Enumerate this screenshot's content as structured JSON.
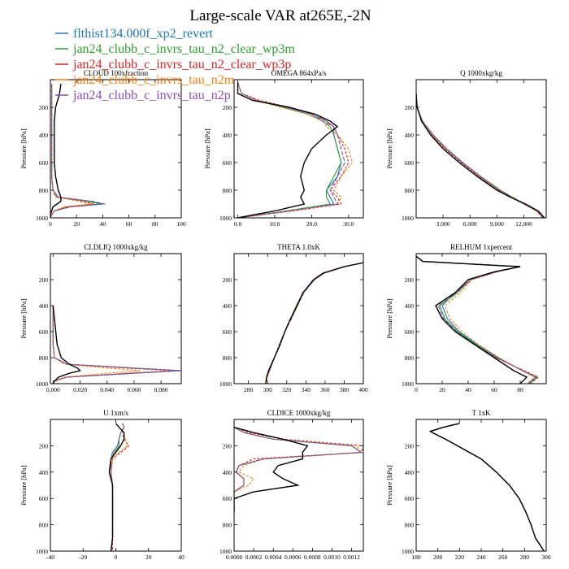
{
  "title": "Large-scale VAR at265E,-2N",
  "legend": [
    {
      "label": "flthist134.000f_xp2_revert",
      "color": "#1f77b4"
    },
    {
      "label": "jan24_clubb_c_invrs_tau_n2_clear_wp3m",
      "color": "#2ca02c"
    },
    {
      "label": "jan24_clubb_c_invrs_tau_n2_clear_wp3p",
      "color": "#d62728"
    },
    {
      "label": "jan24_clubb_c_invrs_tau_n2m",
      "color": "#ff7f0e"
    },
    {
      "label": "jan24_clubb_c_invrs_tau_n2p",
      "color": "#8a4fb5"
    }
  ],
  "obs_color": "#000000",
  "chart_data": [
    {
      "type": "line",
      "title": "CLOUD 100xfraction",
      "ylabel": "Pressure [hPa]",
      "xlim": [
        0,
        100
      ],
      "ylim": [
        1000,
        0
      ],
      "xticks": [
        "0",
        "20",
        "40",
        "60",
        "80",
        "100"
      ],
      "xtick_values": [
        0,
        20,
        40,
        60,
        80,
        100
      ],
      "yticks": [
        "200",
        "400",
        "600",
        "800",
        "1000"
      ],
      "ytick_values": [
        200,
        400,
        600,
        800,
        1000
      ],
      "pressure": [
        30,
        100,
        200,
        300,
        400,
        500,
        600,
        700,
        800,
        850,
        880,
        900,
        920,
        950,
        980,
        1000
      ],
      "obs": [
        8,
        7,
        4,
        3,
        3,
        3,
        3,
        4,
        6,
        8,
        8,
        5,
        2,
        1,
        0,
        0
      ],
      "series": [
        [
          1,
          1,
          1,
          1,
          1,
          1,
          1,
          1,
          2,
          6,
          30,
          40,
          15,
          3,
          1,
          0
        ],
        [
          1,
          1,
          1,
          1,
          1,
          1,
          1,
          1,
          2,
          5,
          28,
          38,
          14,
          3,
          1,
          0
        ],
        [
          1,
          1,
          1,
          1,
          1,
          1,
          1,
          1,
          2,
          4,
          25,
          33,
          12,
          3,
          1,
          0
        ],
        [
          1,
          1,
          1,
          1,
          1,
          1,
          1,
          1,
          2,
          5,
          22,
          31,
          11,
          3,
          1,
          0
        ],
        [
          1,
          1,
          1,
          1,
          1,
          1,
          1,
          1,
          2,
          6,
          32,
          42,
          16,
          3,
          1,
          0
        ]
      ]
    },
    {
      "type": "line",
      "title": "OMEGA 864xPa/s",
      "ylabel": "Pressure [hPa]",
      "xlim": [
        -1,
        34
      ],
      "ylim": [
        1000,
        0
      ],
      "xticks": [
        "0.0",
        "10.0",
        "20.0",
        "30.0"
      ],
      "xtick_values": [
        0,
        10,
        20,
        30
      ],
      "yticks": [
        "200",
        "400",
        "600",
        "800",
        "1000"
      ],
      "ytick_values": [
        200,
        400,
        600,
        800,
        1000
      ],
      "pressure": [
        20,
        100,
        150,
        200,
        250,
        300,
        340,
        400,
        500,
        600,
        700,
        800,
        850,
        900,
        950,
        1000
      ],
      "obs": [
        0,
        0,
        4,
        14,
        21,
        25,
        27,
        24,
        20,
        18,
        17,
        18,
        17,
        18,
        10,
        0
      ],
      "series": [
        [
          0,
          1,
          5,
          13,
          20,
          24,
          26,
          26,
          27,
          28,
          27,
          24,
          25,
          26,
          14,
          0
        ],
        [
          0,
          1,
          5,
          12,
          19,
          23,
          25,
          26,
          27,
          28,
          26,
          24,
          24,
          25,
          13,
          0
        ],
        [
          0,
          1,
          6,
          14,
          21,
          24,
          26,
          27,
          29,
          30,
          28,
          25,
          27,
          28,
          15,
          0
        ],
        [
          0,
          1,
          5,
          12,
          19,
          23,
          24,
          27,
          30,
          31,
          28,
          26,
          28,
          27,
          14,
          0
        ],
        [
          0,
          1,
          5,
          13,
          20,
          23,
          26,
          27,
          28,
          29,
          27,
          25,
          26,
          27,
          14,
          0
        ]
      ]
    },
    {
      "type": "line",
      "title": "Q 1000xkg/kg",
      "ylabel": "Pressure [hPa]",
      "xlim": [
        0,
        14.5
      ],
      "ylim": [
        1000,
        0
      ],
      "xticks": [
        "3.000",
        "6.000",
        "9.000",
        "12.000"
      ],
      "xtick_values": [
        3,
        6,
        9,
        12
      ],
      "yticks": [
        "200",
        "400",
        "600",
        "800",
        "1000"
      ],
      "ytick_values": [
        200,
        400,
        600,
        800,
        1000
      ],
      "pressure": [
        100,
        200,
        300,
        400,
        500,
        600,
        700,
        800,
        850,
        900,
        950,
        1000
      ],
      "obs": [
        0,
        0.1,
        0.6,
        1.6,
        3.0,
        4.8,
        6.8,
        9.0,
        10.5,
        12.2,
        13.6,
        14.3
      ],
      "series": [
        [
          0,
          0.1,
          0.7,
          1.8,
          3.3,
          5.1,
          7.1,
          9.3,
          10.6,
          12.0,
          13.4,
          14.2
        ],
        [
          0,
          0.1,
          0.7,
          1.9,
          3.4,
          5.2,
          7.2,
          9.4,
          10.7,
          12.1,
          13.5,
          14.2
        ],
        [
          0,
          0.1,
          0.6,
          1.7,
          3.2,
          5.0,
          7.0,
          9.2,
          10.5,
          12.0,
          13.4,
          14.1
        ],
        [
          0,
          0.1,
          0.7,
          1.8,
          3.3,
          5.2,
          7.2,
          9.3,
          10.6,
          12.0,
          13.4,
          14.2
        ],
        [
          0,
          0.1,
          0.7,
          1.9,
          3.4,
          5.2,
          7.1,
          9.3,
          10.6,
          12.1,
          13.5,
          14.2
        ]
      ]
    },
    {
      "type": "line",
      "title": "CLDLIQ 1000xkg/kg",
      "ylabel": "Pressure [hPa]",
      "xlim": [
        -0.002,
        0.095
      ],
      "ylim": [
        1000,
        0
      ],
      "xticks": [
        "0.000",
        "0.020",
        "0.040",
        "0.060",
        "0.080"
      ],
      "xtick_values": [
        0,
        0.02,
        0.04,
        0.06,
        0.08
      ],
      "yticks": [
        "200",
        "400",
        "600",
        "800",
        "1000"
      ],
      "ytick_values": [
        200,
        400,
        600,
        800,
        1000
      ],
      "pressure": [
        400,
        500,
        600,
        700,
        800,
        850,
        880,
        900,
        920,
        950,
        980,
        1000
      ],
      "obs": [
        0,
        0.001,
        0.002,
        0.003,
        0.006,
        0.012,
        0.018,
        0.02,
        0.012,
        0.004,
        0.001,
        0
      ],
      "series": [
        [
          0,
          0,
          0,
          0,
          0.001,
          0.01,
          0.06,
          0.095,
          0.06,
          0.01,
          0.001,
          0
        ],
        [
          0,
          0,
          0,
          0,
          0.001,
          0.01,
          0.058,
          0.093,
          0.058,
          0.01,
          0.001,
          0
        ],
        [
          0,
          0,
          0,
          0,
          0.001,
          0.01,
          0.055,
          0.09,
          0.055,
          0.01,
          0.001,
          0
        ],
        [
          0,
          0,
          0,
          0,
          0.001,
          0.008,
          0.04,
          0.065,
          0.04,
          0.008,
          0.001,
          0
        ],
        [
          0,
          0,
          0,
          0,
          0.001,
          0.01,
          0.06,
          0.095,
          0.06,
          0.01,
          0.001,
          0
        ]
      ]
    },
    {
      "type": "line",
      "title": "THETA 1.0xK",
      "ylabel": "",
      "xlim": [
        265,
        400
      ],
      "ylim": [
        1000,
        0
      ],
      "xticks": [
        "280",
        "300",
        "320",
        "340",
        "360",
        "380",
        "400"
      ],
      "xtick_values": [
        280,
        300,
        320,
        340,
        360,
        380,
        400
      ],
      "yticks": [
        "200",
        "400",
        "600",
        "800",
        "1000"
      ],
      "ytick_values": [
        200,
        400,
        600,
        800,
        1000
      ],
      "pressure": [
        70,
        100,
        150,
        200,
        300,
        400,
        500,
        600,
        700,
        800,
        900,
        950,
        1000
      ],
      "obs": [
        400,
        380,
        358,
        348,
        337,
        331,
        324,
        318,
        313,
        307,
        301,
        299,
        298
      ],
      "series": [
        [
          400,
          381,
          359,
          349,
          337,
          331,
          324,
          318,
          313,
          307,
          302,
          299,
          298
        ],
        [
          400,
          381,
          359,
          349,
          337,
          330,
          324,
          318,
          313,
          307,
          302,
          299,
          298
        ],
        [
          400,
          380,
          358,
          348,
          337,
          330,
          324,
          318,
          312,
          307,
          301,
          299,
          298
        ],
        [
          400,
          381,
          359,
          349,
          337,
          331,
          324,
          318,
          313,
          307,
          302,
          300,
          298
        ],
        [
          400,
          381,
          359,
          349,
          338,
          331,
          325,
          318,
          313,
          307,
          302,
          299,
          298
        ]
      ]
    },
    {
      "type": "line",
      "title": "RELHUM 1xpercent",
      "ylabel": "Pressure [hPa]",
      "xlim": [
        0,
        100
      ],
      "ylim": [
        1000,
        0
      ],
      "xticks": [
        "0",
        "20",
        "40",
        "60",
        "80"
      ],
      "xtick_values": [
        0,
        20,
        40,
        60,
        80
      ],
      "yticks": [
        "200",
        "400",
        "600",
        "800",
        "1000"
      ],
      "ytick_values": [
        200,
        400,
        600,
        800,
        1000
      ],
      "pressure": [
        20,
        60,
        90,
        100,
        140,
        200,
        300,
        400,
        500,
        600,
        700,
        800,
        900,
        950,
        1000
      ],
      "obs": [
        0,
        5,
        60,
        80,
        60,
        40,
        30,
        15,
        20,
        30,
        45,
        60,
        75,
        85,
        80
      ],
      "series": [
        [
          0,
          5,
          62,
          80,
          62,
          42,
          30,
          20,
          24,
          33,
          47,
          63,
          82,
          92,
          86
        ],
        [
          0,
          5,
          62,
          80,
          62,
          42,
          32,
          18,
          22,
          32,
          46,
          62,
          82,
          93,
          87
        ],
        [
          0,
          5,
          62,
          80,
          62,
          42,
          30,
          15,
          20,
          30,
          45,
          61,
          83,
          94,
          88
        ],
        [
          0,
          5,
          62,
          80,
          62,
          43,
          34,
          22,
          26,
          35,
          48,
          64,
          81,
          91,
          85
        ],
        [
          0,
          5,
          62,
          80,
          62,
          42,
          31,
          17,
          21,
          31,
          45,
          62,
          82,
          92,
          86
        ]
      ]
    },
    {
      "type": "line",
      "title": "U 1xm/s",
      "ylabel": "Pressure [hPa]",
      "xlim": [
        -40,
        40
      ],
      "ylim": [
        1000,
        0
      ],
      "xticks": [
        "-40",
        "-20",
        "0",
        "20",
        "40"
      ],
      "xtick_values": [
        -40,
        -20,
        0,
        20,
        40
      ],
      "yticks": [
        "200",
        "400",
        "600",
        "800",
        "1000"
      ],
      "ytick_values": [
        200,
        400,
        600,
        800,
        1000
      ],
      "pressure": [
        30,
        60,
        100,
        150,
        200,
        250,
        300,
        400,
        500,
        600,
        700,
        800,
        900,
        1000
      ],
      "obs": [
        0,
        2,
        5,
        5,
        3,
        0,
        -3,
        -4,
        -2,
        -2,
        -2,
        -2,
        -2,
        -3
      ],
      "series": [
        [
          4,
          5,
          3,
          2,
          1,
          -2,
          -3,
          -3,
          -2,
          -2,
          -2,
          -2,
          -2,
          -3
        ],
        [
          4,
          5,
          3,
          2,
          2,
          -1,
          -3,
          -3,
          -2,
          -2,
          -2,
          -2,
          -2,
          -3
        ],
        [
          4,
          5,
          4,
          5,
          8,
          3,
          -2,
          -3,
          -2,
          -2,
          -2,
          -2,
          -2,
          -2
        ],
        [
          4,
          5,
          4,
          6,
          7,
          2,
          -2,
          -3,
          -2,
          -2,
          -2,
          -2,
          -2,
          -3
        ],
        [
          4,
          5,
          3,
          2,
          1,
          -2,
          -3,
          -3,
          -2,
          -2,
          -2,
          -2,
          -2,
          -3
        ]
      ]
    },
    {
      "type": "line",
      "title": "CLDICE 1000xkg/kg",
      "ylabel": "",
      "xlim": [
        0,
        0.00132
      ],
      "ylim": [
        1000,
        0
      ],
      "xticks": [
        "0.0000",
        "0.0002",
        "0.0004",
        "0.0006",
        "0.0008",
        "0.0010",
        "0.0012"
      ],
      "xtick_values": [
        0,
        0.0002,
        0.0004,
        0.0006,
        0.0008,
        0.001,
        0.0012
      ],
      "yticks": [
        "200",
        "400",
        "600",
        "800",
        "1000"
      ],
      "ytick_values": [
        200,
        400,
        600,
        800,
        1000
      ],
      "pressure": [
        60,
        100,
        150,
        200,
        250,
        300,
        350,
        400,
        450,
        500,
        550,
        600,
        700
      ],
      "obs": [
        0,
        0.0002,
        0.0005,
        0.00075,
        0.0007,
        0.0007,
        0.00045,
        0.0004,
        0.0005,
        0.00065,
        0.0002,
        0,
        0
      ],
      "series": [
        [
          0,
          0.0001,
          0.0004,
          0.0012,
          0.0013,
          0.0003,
          5e-05,
          2e-05,
          0.0001,
          0.0001,
          0,
          0,
          0
        ],
        [
          0,
          0.0001,
          0.0004,
          0.0012,
          0.0013,
          0.0003,
          5e-05,
          2e-05,
          0.0001,
          0.0001,
          0,
          0,
          0
        ],
        [
          0,
          0.00015,
          0.0005,
          0.00132,
          0.0013,
          0.0002,
          5e-05,
          2e-05,
          0.0001,
          0.0001,
          0,
          0,
          0
        ],
        [
          0,
          0.0001,
          0.0004,
          0.00125,
          0.0013,
          0.0003,
          0.0001,
          5e-05,
          0.0002,
          0.00015,
          0,
          0,
          0
        ],
        [
          0,
          0.0001,
          0.0004,
          0.0012,
          0.0013,
          0.0003,
          5e-05,
          2e-05,
          0.0001,
          0.0001,
          0,
          0,
          0
        ]
      ]
    },
    {
      "type": "line",
      "title": "T 1xK",
      "ylabel": "Pressure [hPa]",
      "xlim": [
        180,
        300
      ],
      "ylim": [
        1000,
        0
      ],
      "xticks": [
        "180",
        "200",
        "220",
        "240",
        "260",
        "280",
        "300"
      ],
      "xtick_values": [
        180,
        200,
        220,
        240,
        260,
        280,
        300
      ],
      "yticks": [
        "200",
        "400",
        "600",
        "800",
        "1000"
      ],
      "ytick_values": [
        200,
        400,
        600,
        800,
        1000
      ],
      "pressure": [
        30,
        60,
        90,
        100,
        150,
        200,
        300,
        400,
        500,
        600,
        700,
        800,
        900,
        1000
      ],
      "obs": [
        220,
        205,
        193,
        195,
        207,
        218,
        240,
        254,
        266,
        275,
        281,
        286,
        290,
        298
      ],
      "series": [
        [
          220,
          205,
          194,
          195,
          207,
          218,
          240,
          254,
          266,
          275,
          281,
          286,
          290,
          298
        ],
        [
          220,
          205,
          194,
          195,
          207,
          218,
          240,
          254,
          266,
          275,
          281,
          286,
          290,
          298
        ],
        [
          220,
          205,
          194,
          195,
          207,
          218,
          240,
          254,
          266,
          275,
          281,
          286,
          290,
          298
        ],
        [
          220,
          205,
          194,
          195,
          207,
          218,
          240,
          254,
          266,
          275,
          281,
          286,
          290,
          298
        ],
        [
          220,
          205,
          194,
          195,
          207,
          218,
          240,
          254,
          266,
          275,
          281,
          286,
          290,
          298
        ]
      ]
    }
  ]
}
